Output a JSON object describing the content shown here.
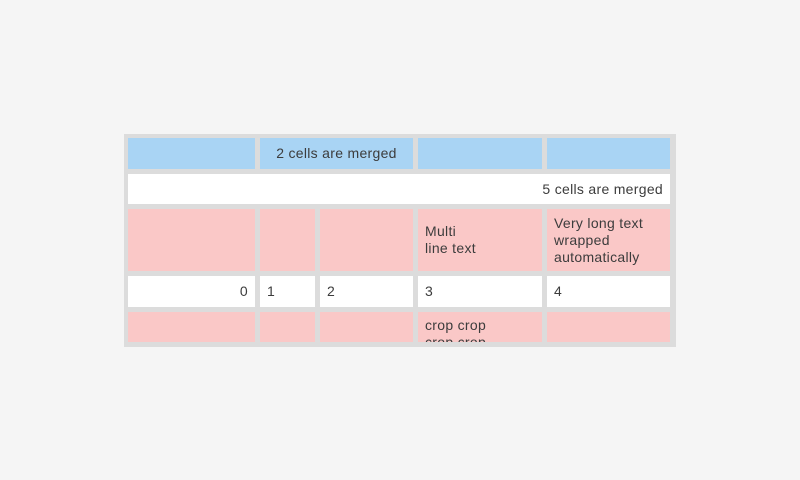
{
  "palette": {
    "page-bg": "#f5f5f5",
    "frame-gray": "#dcdcdc",
    "cell-blue": "#a9d4f4",
    "cell-pink": "#fac8c7",
    "cell-white": "#ffffff",
    "text-color": "#3c3c3c"
  },
  "table": {
    "row1": {
      "merged_label": "2 cells are merged"
    },
    "row2": {
      "merged_label": "5 cells are merged"
    },
    "row3": {
      "multiline_label": "Multi\nline text",
      "wrapped_label": "Very long text wrapped automatically"
    },
    "row4": {
      "c1": "0",
      "c2": "1",
      "c3": "2",
      "c4": "3",
      "c5": "4"
    },
    "row5": {
      "cropped_label": "crop crop\ncrop crop"
    }
  }
}
